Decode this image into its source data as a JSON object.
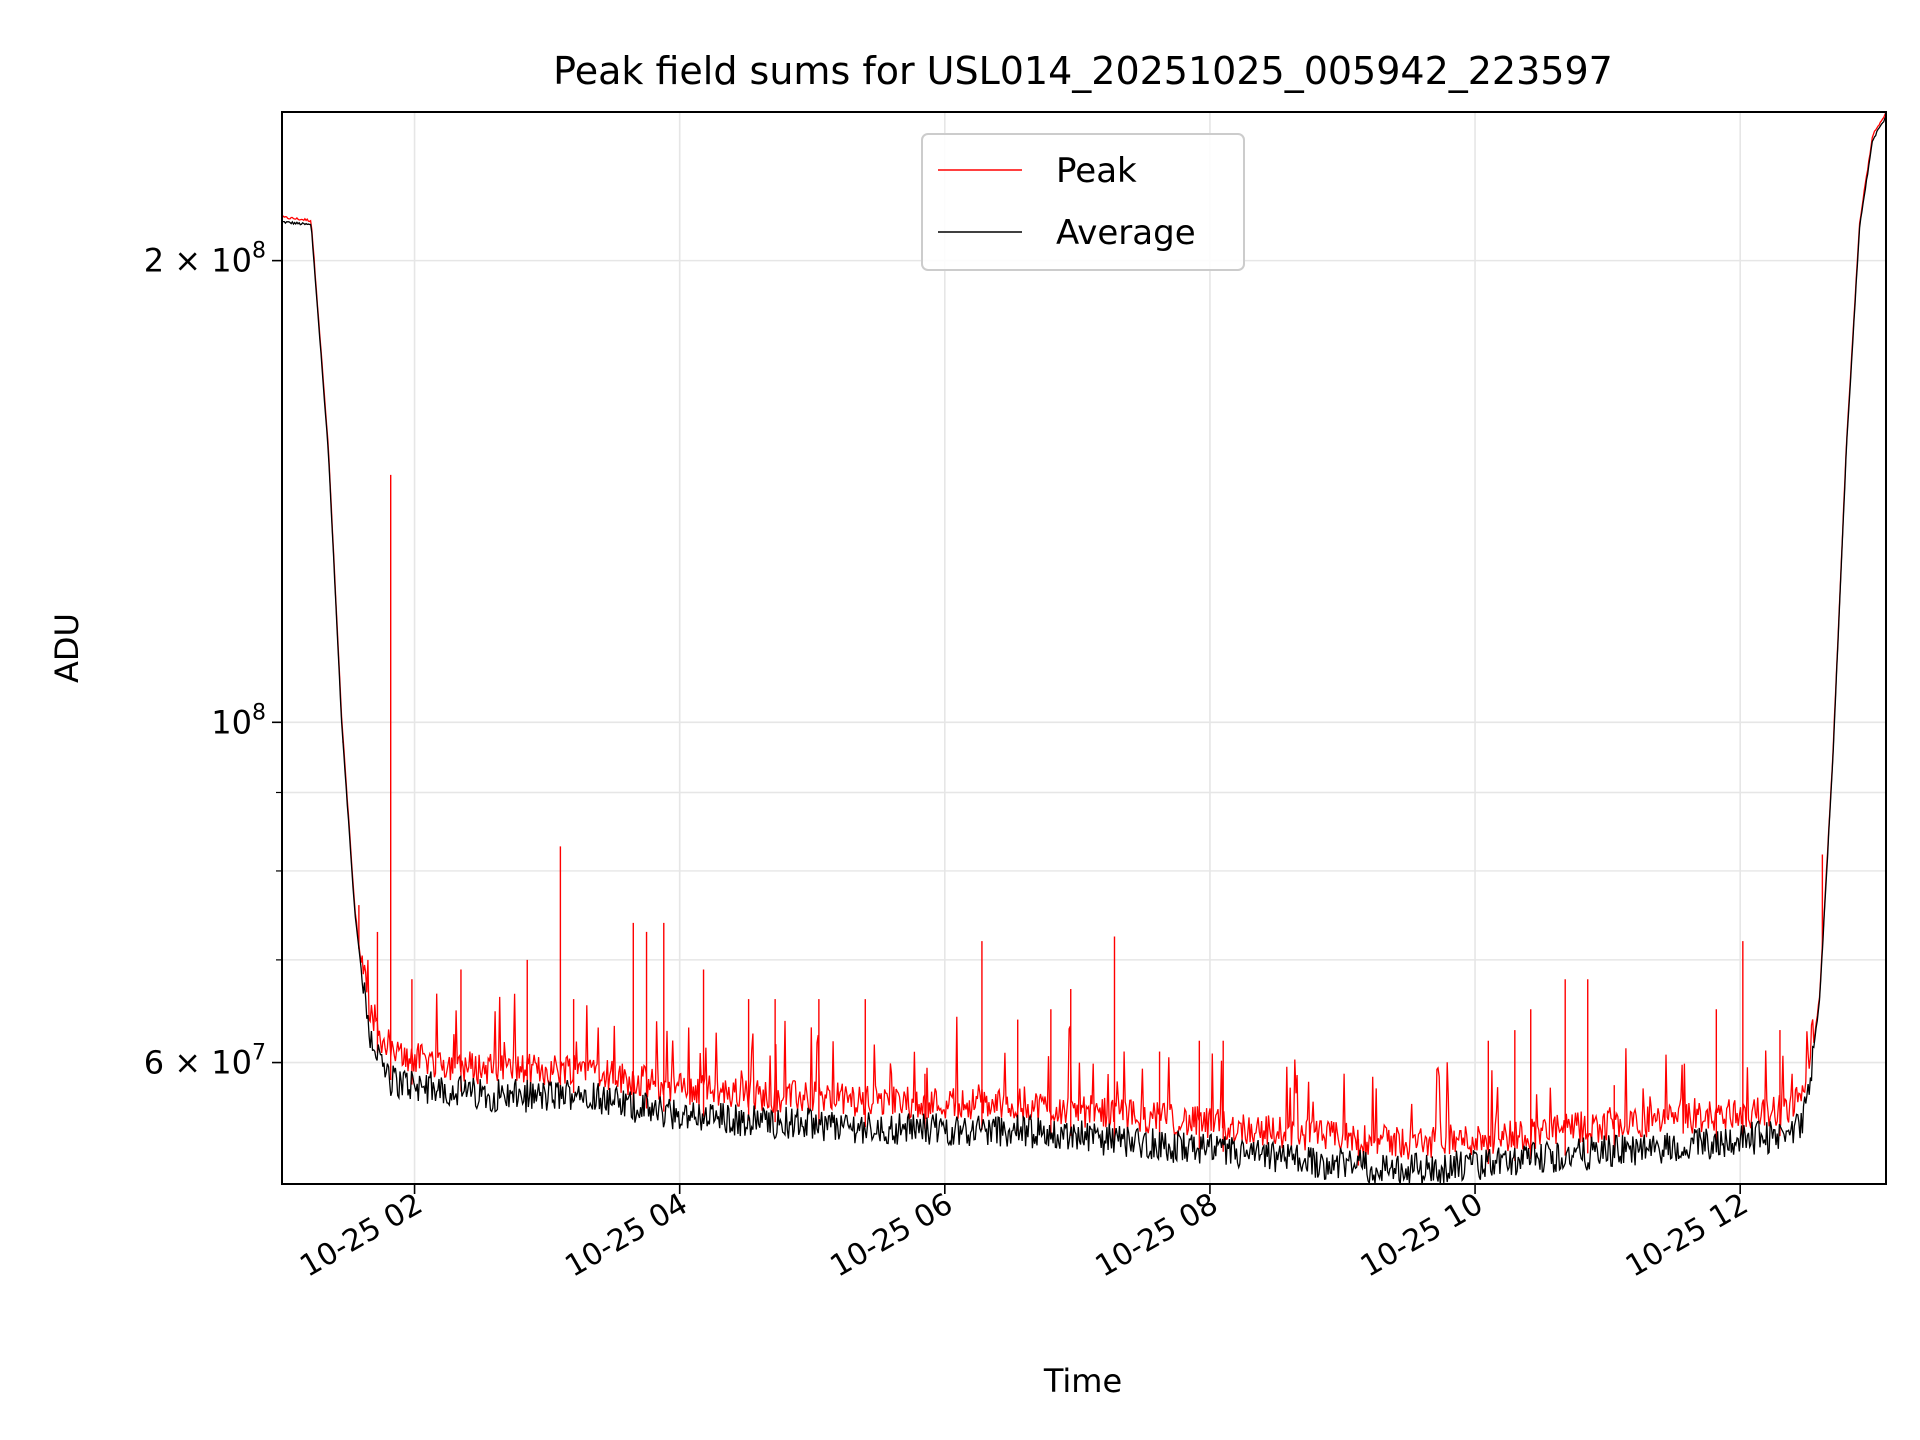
{
  "chart_data": {
    "type": "line",
    "title": "Peak field sums for USL014_20251025_005942_223597",
    "xlabel": "Time",
    "ylabel": "ADU",
    "yscale": "log",
    "xlim_hours": [
      1.0,
      13.1
    ],
    "ylim": [
      50000000,
      250000000
    ],
    "x_tick_hours": [
      2,
      4,
      6,
      8,
      10,
      12
    ],
    "x_tick_labels": [
      "10-25 02",
      "10-25 04",
      "10-25 06",
      "10-25 08",
      "10-25 10",
      "10-25 12"
    ],
    "y_major_ticks": [
      {
        "value": 200000000,
        "base": "2 × 10",
        "exp": "8"
      },
      {
        "value": 100000000,
        "base": "10",
        "exp": "8"
      },
      {
        "value": 60000000,
        "base": "6 × 10",
        "exp": "7"
      }
    ],
    "y_minor_ticks": [
      70000000,
      80000000,
      90000000
    ],
    "grid": true,
    "legend": {
      "position": "top-center",
      "entries": [
        "Peak",
        "Average"
      ]
    },
    "series_colors": {
      "Peak": "#ff0000",
      "Average": "#000000"
    },
    "trend": {
      "x_hours": [
        1.0,
        1.22,
        1.35,
        1.45,
        1.55,
        1.65,
        1.8,
        2.0,
        2.5,
        3.0,
        3.3,
        3.5,
        4.0,
        4.5,
        5.0,
        5.5,
        6.0,
        6.5,
        7.0,
        7.5,
        8.0,
        8.5,
        9.0,
        9.5,
        10.0,
        10.5,
        11.0,
        11.5,
        12.0,
        12.4,
        12.5,
        12.6,
        12.7,
        12.8,
        12.9,
        13.0,
        13.1
      ],
      "average": [
        212000000,
        211000000,
        150000000,
        100000000,
        75000000,
        63000000,
        58500000,
        58000000,
        57200000,
        57000000,
        57500000,
        56500000,
        55500000,
        55000000,
        54700000,
        54400000,
        54300000,
        54200000,
        53700000,
        53200000,
        52600000,
        52000000,
        51500000,
        51100000,
        51400000,
        52000000,
        52500000,
        52900000,
        53500000,
        53800000,
        56000000,
        66000000,
        95000000,
        150000000,
        210000000,
        240000000,
        248000000
      ],
      "peak_offset_fraction": 0.03,
      "noise_fraction": 0.025
    },
    "peak_spikes": [
      {
        "x_hours": 1.46,
        "value": 97000000
      },
      {
        "x_hours": 1.58,
        "value": 76000000
      },
      {
        "x_hours": 1.72,
        "value": 73000000
      },
      {
        "x_hours": 1.82,
        "value": 145000000
      },
      {
        "x_hours": 1.98,
        "value": 68000000
      },
      {
        "x_hours": 2.35,
        "value": 69000000
      },
      {
        "x_hours": 2.85,
        "value": 70000000
      },
      {
        "x_hours": 3.1,
        "value": 83000000
      },
      {
        "x_hours": 3.2,
        "value": 66000000
      },
      {
        "x_hours": 3.65,
        "value": 74000000
      },
      {
        "x_hours": 3.75,
        "value": 73000000
      },
      {
        "x_hours": 3.88,
        "value": 74000000
      },
      {
        "x_hours": 4.18,
        "value": 69000000
      },
      {
        "x_hours": 4.52,
        "value": 66000000
      },
      {
        "x_hours": 4.72,
        "value": 66000000
      },
      {
        "x_hours": 5.05,
        "value": 66000000
      },
      {
        "x_hours": 5.4,
        "value": 66000000
      },
      {
        "x_hours": 5.85,
        "value": 59000000
      },
      {
        "x_hours": 6.28,
        "value": 72000000
      },
      {
        "x_hours": 6.55,
        "value": 64000000
      },
      {
        "x_hours": 6.8,
        "value": 65000000
      },
      {
        "x_hours": 6.95,
        "value": 67000000
      },
      {
        "x_hours": 7.28,
        "value": 72500000
      },
      {
        "x_hours": 7.62,
        "value": 61000000
      },
      {
        "x_hours": 7.92,
        "value": 62000000
      },
      {
        "x_hours": 8.1,
        "value": 62000000
      },
      {
        "x_hours": 9.12,
        "value": 53500000
      },
      {
        "x_hours": 10.1,
        "value": 62000000
      },
      {
        "x_hours": 10.3,
        "value": 63000000
      },
      {
        "x_hours": 10.42,
        "value": 65000000
      },
      {
        "x_hours": 10.68,
        "value": 68000000
      },
      {
        "x_hours": 10.85,
        "value": 68000000
      },
      {
        "x_hours": 11.05,
        "value": 58000000
      },
      {
        "x_hours": 11.82,
        "value": 65000000
      },
      {
        "x_hours": 12.02,
        "value": 72000000
      },
      {
        "x_hours": 12.3,
        "value": 63000000
      },
      {
        "x_hours": 12.62,
        "value": 82000000
      }
    ]
  }
}
